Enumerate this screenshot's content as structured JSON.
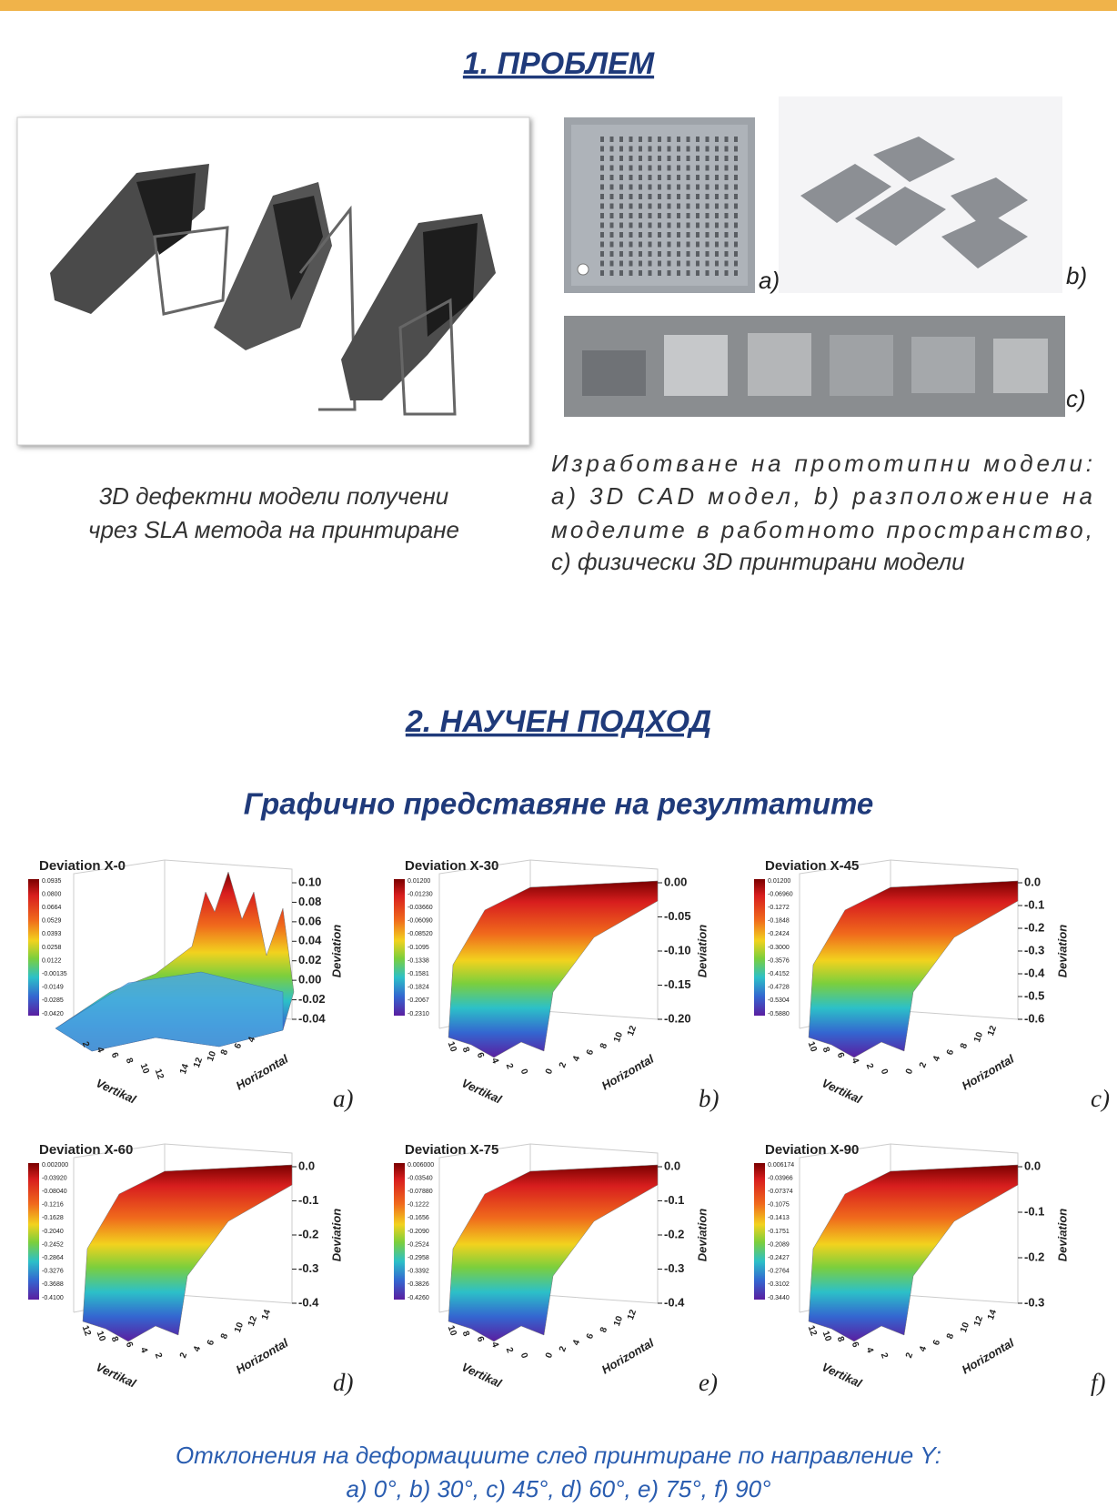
{
  "section1": {
    "title": "1. ПРОБЛЕМ",
    "left_caption": [
      "3D дефектни модели получени",
      "чрез SLA метода на принтиране"
    ],
    "right_caption": [
      "Изработване на прототипни модели:",
      "a) 3D CAD модел, b) разположение на",
      "моделите в работното пространство,",
      "c) физически 3D принтирани модели"
    ],
    "panel_labels": [
      "a)",
      "b)",
      "c)"
    ]
  },
  "section2": {
    "title": "2. НАУЧЕН ПОДХОД",
    "subtitle": "Графично представяне на резултатите",
    "plots": [
      {
        "title": "Deviation X-0",
        "letter": "a)",
        "z_label": "Deviation",
        "x_label": "Vertikal",
        "y_label": "Horizontal",
        "colorbar": [
          "0.0935",
          "0.0800",
          "0.0664",
          "0.0529",
          "0.0393",
          "0.0258",
          "0.0122",
          "-0.00135",
          "-0.0149",
          "-0.0285",
          "-0.0420"
        ],
        "z_ticks": [
          "0.10",
          "0.08",
          "0.06",
          "0.04",
          "0.02",
          "0.00",
          "-0.02",
          "-0.04"
        ],
        "x_ticks": [
          "2",
          "4",
          "6",
          "8",
          "10",
          "12"
        ],
        "y_ticks": [
          "14",
          "12",
          "10",
          "8",
          "6",
          "4"
        ]
      },
      {
        "title": "Deviation X-30",
        "letter": "b)",
        "z_label": "Deviation",
        "x_label": "Vertikal",
        "y_label": "Horizontal",
        "colorbar": [
          "0.01200",
          "-0.01230",
          "-0.03660",
          "-0.06090",
          "-0.08520",
          "-0.1095",
          "-0.1338",
          "-0.1581",
          "-0.1824",
          "-0.2067",
          "-0.2310"
        ],
        "z_ticks": [
          "0.00",
          "-0.05",
          "-0.10",
          "-0.15",
          "-0.20"
        ],
        "x_ticks": [
          "10",
          "8",
          "6",
          "4",
          "2",
          "0"
        ],
        "y_ticks": [
          "0",
          "2",
          "4",
          "6",
          "8",
          "10",
          "12"
        ]
      },
      {
        "title": "Deviation X-45",
        "letter": "c)",
        "z_label": "Deviation",
        "x_label": "Vertikal",
        "y_label": "Horizontal",
        "colorbar": [
          "0.01200",
          "-0.06960",
          "-0.1272",
          "-0.1848",
          "-0.2424",
          "-0.3000",
          "-0.3576",
          "-0.4152",
          "-0.4728",
          "-0.5304",
          "-0.5880"
        ],
        "z_ticks": [
          "0.0",
          "-0.1",
          "-0.2",
          "-0.3",
          "-0.4",
          "-0.5",
          "-0.6"
        ],
        "x_ticks": [
          "10",
          "8",
          "6",
          "4",
          "2",
          "0"
        ],
        "y_ticks": [
          "0",
          "2",
          "4",
          "6",
          "8",
          "10",
          "12"
        ]
      },
      {
        "title": "Deviation X-60",
        "letter": "d)",
        "z_label": "Deviation",
        "x_label": "Vertikal",
        "y_label": "Horizontal",
        "colorbar": [
          "0.002000",
          "-0.03920",
          "-0.08040",
          "-0.1216",
          "-0.1628",
          "-0.2040",
          "-0.2452",
          "-0.2864",
          "-0.3276",
          "-0.3688",
          "-0.4100"
        ],
        "z_ticks": [
          "0.0",
          "-0.1",
          "-0.2",
          "-0.3",
          "-0.4"
        ],
        "x_ticks": [
          "12",
          "10",
          "8",
          "6",
          "4",
          "2"
        ],
        "y_ticks": [
          "2",
          "4",
          "6",
          "8",
          "10",
          "12",
          "14"
        ]
      },
      {
        "title": "Deviation X-75",
        "letter": "e)",
        "z_label": "Deviation",
        "x_label": "Vertikal",
        "y_label": "Horizontal",
        "colorbar": [
          "0.006000",
          "-0.03540",
          "-0.07880",
          "-0.1222",
          "-0.1656",
          "-0.2090",
          "-0.2524",
          "-0.2958",
          "-0.3392",
          "-0.3826",
          "-0.4260"
        ],
        "z_ticks": [
          "0.0",
          "-0.1",
          "-0.2",
          "-0.3",
          "-0.4"
        ],
        "x_ticks": [
          "10",
          "8",
          "6",
          "4",
          "2",
          "0"
        ],
        "y_ticks": [
          "0",
          "2",
          "4",
          "6",
          "8",
          "10",
          "12"
        ]
      },
      {
        "title": "Deviation X-90",
        "letter": "f)",
        "z_label": "Deviation",
        "x_label": "Vertikal",
        "y_label": "Horizontal",
        "colorbar": [
          "0.006174",
          "-0.03966",
          "-0.07374",
          "-0.1075",
          "-0.1413",
          "-0.1751",
          "-0.2089",
          "-0.2427",
          "-0.2764",
          "-0.3102",
          "-0.3440"
        ],
        "z_ticks": [
          "0.0",
          "-0.1",
          "-0.2",
          "-0.3"
        ],
        "x_ticks": [
          "12",
          "10",
          "8",
          "6",
          "4",
          "2"
        ],
        "y_ticks": [
          "2",
          "4",
          "6",
          "8",
          "10",
          "12",
          "14"
        ]
      }
    ],
    "caption": [
      "Отклонения на деформациите след принтиране по направление Y:",
      "a) 0°, b) 30°, c) 45°, d) 60°, e) 75°, f) 90°"
    ]
  }
}
